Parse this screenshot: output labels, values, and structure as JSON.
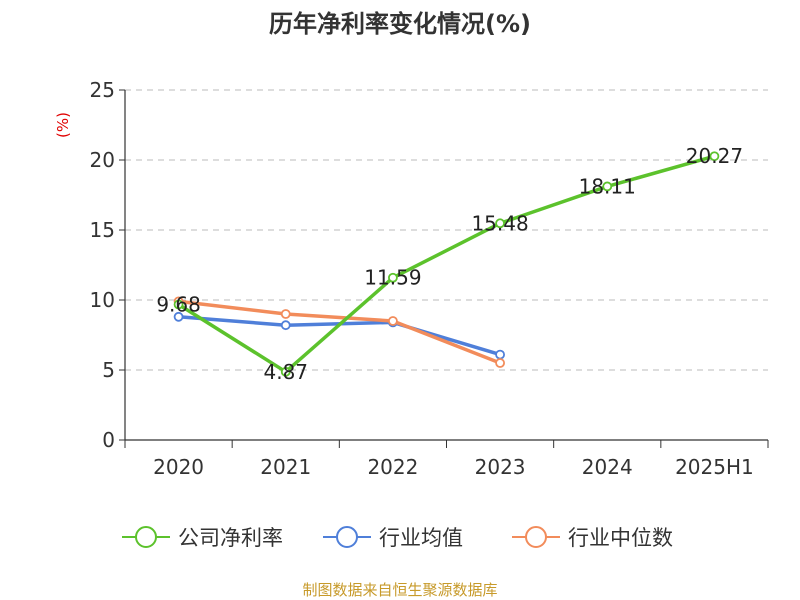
{
  "chart_data": {
    "type": "line",
    "title": "历年净利率变化情况(%)",
    "ylabel": "(%)",
    "xlabel": "",
    "categories": [
      "2020",
      "2021",
      "2022",
      "2023",
      "2024",
      "2025H1"
    ],
    "ylim": [
      0,
      25
    ],
    "yticks": [
      "0",
      "5",
      "10",
      "15",
      "20",
      "25"
    ],
    "grid": true,
    "legend_position": "bottom",
    "series": [
      {
        "name": "公司净利率",
        "color": "#5cc22c",
        "values": [
          9.68,
          4.87,
          11.59,
          15.48,
          18.11,
          20.27
        ],
        "labels": [
          "9.68",
          "4.87",
          "11.59",
          "15.48",
          "18.11",
          "20.27"
        ]
      },
      {
        "name": "行业均值",
        "color": "#4f7fd9",
        "values": [
          8.8,
          8.2,
          8.4,
          6.1,
          null,
          null
        ]
      },
      {
        "name": "行业中位数",
        "color": "#f28c5b",
        "values": [
          9.9,
          9.0,
          8.5,
          5.5,
          null,
          null
        ]
      }
    ]
  },
  "source_text": "制图数据来自恒生聚源数据库",
  "colors": {
    "axis": "#333333",
    "grid": "#bbbbbb",
    "ylabel": "#e00000",
    "source": "#c79a2a"
  }
}
